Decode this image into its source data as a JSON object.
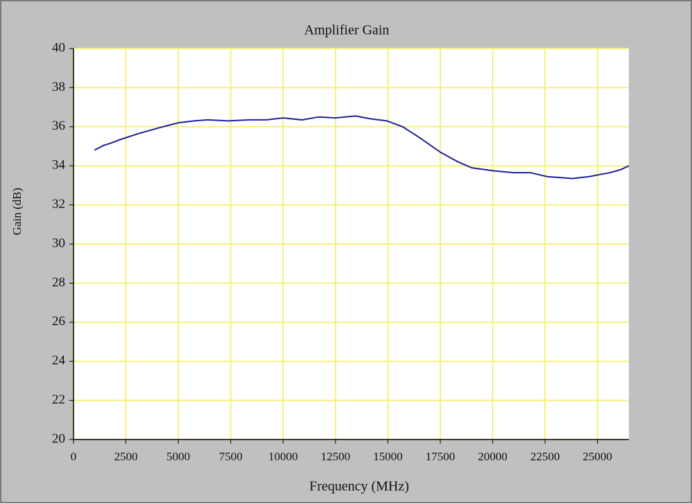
{
  "chart_data": {
    "type": "line",
    "title": "Amplifier Gain",
    "x_label": "Frequency (MHz)",
    "y_label": "Gain (dB)",
    "x": [
      1000,
      1450,
      1750,
      2250,
      3100,
      4100,
      5000,
      5750,
      6400,
      7400,
      8400,
      9200,
      10000,
      10900,
      11700,
      12500,
      13450,
      14200,
      14950,
      15700,
      16500,
      17500,
      18350,
      19000,
      20000,
      21000,
      21800,
      22600,
      23800,
      24600,
      25600,
      26100,
      26500
    ],
    "series": [
      {
        "name": "Gain",
        "color": "#1f1f96",
        "values": [
          34.8,
          35.05,
          35.15,
          35.35,
          35.65,
          35.95,
          36.2,
          36.3,
          36.35,
          36.3,
          36.35,
          36.35,
          36.45,
          36.35,
          36.5,
          36.45,
          36.55,
          36.4,
          36.3,
          36.0,
          35.45,
          34.7,
          34.2,
          33.9,
          33.75,
          33.65,
          33.65,
          33.45,
          33.35,
          33.45,
          33.65,
          33.8,
          34.0
        ]
      }
    ],
    "xlim": [
      0,
      26500
    ],
    "ylim": [
      20,
      40
    ],
    "xticks": [
      0,
      2500,
      5000,
      7500,
      10000,
      12500,
      15000,
      17500,
      20000,
      22500,
      25000
    ],
    "yticks": [
      20,
      22,
      24,
      26,
      28,
      30,
      32,
      34,
      36,
      38,
      40
    ],
    "grid": true,
    "grid_color": "#f5f07a"
  }
}
